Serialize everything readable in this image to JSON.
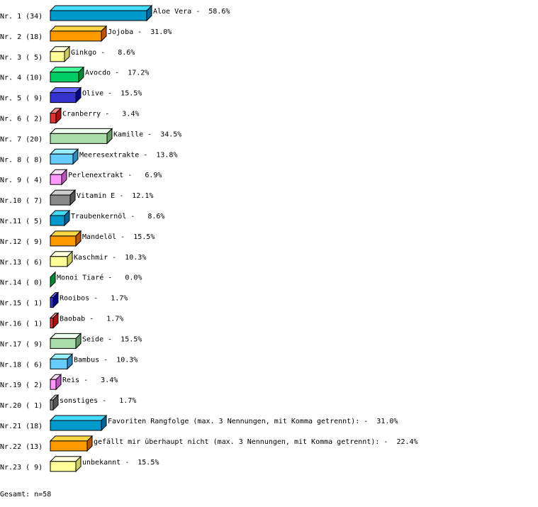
{
  "chart_data": {
    "type": "bar",
    "orientation": "horizontal",
    "style": "3d",
    "unit": "%",
    "categories": [
      "Nr. 1",
      "Nr. 2",
      "Nr. 3",
      "Nr. 4",
      "Nr. 5",
      "Nr. 6",
      "Nr. 7",
      "Nr. 8",
      "Nr. 9",
      "Nr.10",
      "Nr.11",
      "Nr.12",
      "Nr.13",
      "Nr.14",
      "Nr.15",
      "Nr.16",
      "Nr.17",
      "Nr.18",
      "Nr.19",
      "Nr.20",
      "Nr.21",
      "Nr.22",
      "Nr.23"
    ],
    "counts": [
      34,
      18,
      5,
      10,
      9,
      2,
      20,
      8,
      4,
      7,
      5,
      9,
      6,
      0,
      1,
      1,
      9,
      6,
      2,
      1,
      18,
      13,
      9
    ],
    "names": [
      "Aloe Vera",
      "Jojoba",
      "Ginkgo",
      "Avocdo",
      "Olive",
      "Cranberry",
      "Kamille",
      "Meeresextrakte",
      "Perlenextrakt",
      "Vitamin E",
      "Traubenkernöl",
      "Mandelöl",
      "Kaschmir",
      "Monoi Tiaré",
      "Rooibos",
      "Baobab",
      "Seide",
      "Bambus",
      "Reis",
      "sonstiges",
      "Favoriten Rangfolge (max. 3 Nennungen, mit Komma getrennt):",
      "gefällt mir überhaupt nicht (max. 3 Nennungen, mit Komma getrennt):",
      "unbekannt"
    ],
    "values": [
      58.6,
      31.0,
      8.6,
      17.2,
      15.5,
      3.4,
      34.5,
      13.8,
      6.9,
      12.1,
      8.6,
      15.5,
      10.3,
      0.0,
      1.7,
      1.7,
      15.5,
      10.3,
      3.4,
      1.7,
      31.0,
      22.4,
      15.5
    ],
    "palette": [
      {
        "front": "#0099cc",
        "top": "#44ddff",
        "side": "#006699"
      },
      {
        "front": "#ff9900",
        "top": "#ffd744",
        "side": "#bb5500"
      },
      {
        "front": "#ffff99",
        "top": "#ffffdd",
        "side": "#cccc66"
      },
      {
        "front": "#00cc66",
        "top": "#44ff99",
        "side": "#008833"
      },
      {
        "front": "#3333cc",
        "top": "#6666ff",
        "side": "#000088"
      },
      {
        "front": "#dd3333",
        "top": "#ff8888",
        "side": "#aa1111"
      },
      {
        "front": "#aaddaa",
        "top": "#eeffee",
        "side": "#669966"
      },
      {
        "front": "#66ccff",
        "top": "#99eeff",
        "side": "#3388bb"
      },
      {
        "front": "#ff99ff",
        "top": "#ffddff",
        "side": "#bb55bb"
      },
      {
        "front": "#888888",
        "top": "#cccccc",
        "side": "#555555"
      }
    ]
  },
  "footer": "Gesamt: n=58"
}
